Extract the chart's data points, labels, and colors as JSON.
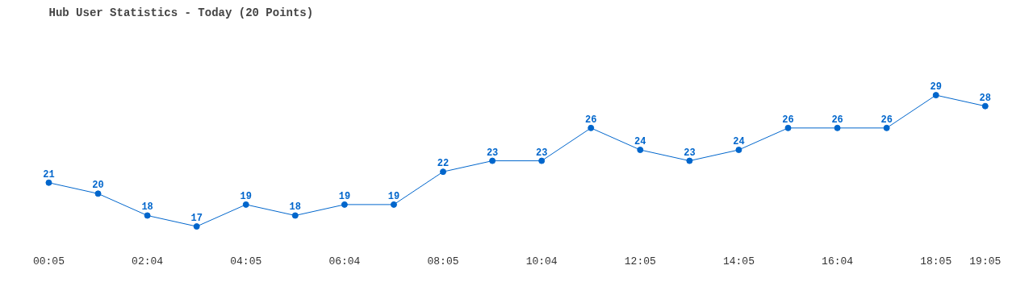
{
  "chart_data": {
    "type": "line",
    "title": "Hub User Statistics - Today (20 Points)",
    "categories": [
      "00:05",
      null,
      "02:04",
      null,
      "04:05",
      null,
      "06:04",
      null,
      "08:05",
      null,
      "10:04",
      null,
      "12:05",
      null,
      "14:05",
      null,
      "16:04",
      null,
      "18:05",
      "19:05"
    ],
    "series": [
      {
        "color": "#0066cc",
        "values": [
          21,
          20,
          18,
          17,
          19,
          18,
          19,
          19,
          22,
          23,
          23,
          26,
          24,
          23,
          24,
          26,
          26,
          26,
          29,
          28
        ]
      }
    ],
    "data_labels": true,
    "marker": "circle",
    "line_style": "solid",
    "grid": false
  }
}
